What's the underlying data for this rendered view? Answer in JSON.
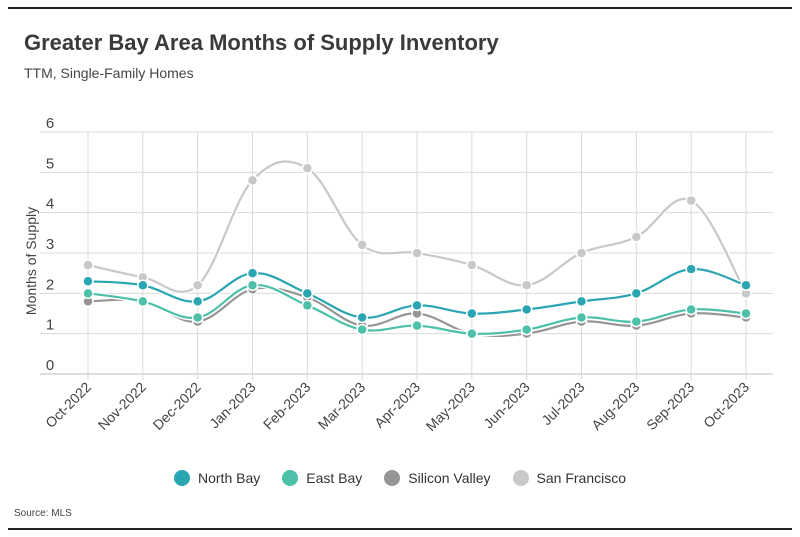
{
  "title": "Greater Bay Area Months of Supply Inventory",
  "subtitle": "TTM, Single-Family Homes",
  "source": "Source: MLS",
  "chart_data": {
    "type": "line",
    "ylabel": "Months of Supply",
    "xlabel": "",
    "ylim": [
      0,
      6
    ],
    "yticks": [
      0,
      1,
      2,
      3,
      4,
      5,
      6
    ],
    "categories": [
      "Oct-2022",
      "Nov-2022",
      "Dec-2022",
      "Jan-2023",
      "Feb-2023",
      "Mar-2023",
      "Apr-2023",
      "May-2023",
      "Jun-2023",
      "Jul-2023",
      "Aug-2023",
      "Sep-2023",
      "Oct-2023"
    ],
    "grid": true,
    "legend": "bottom",
    "series": [
      {
        "name": "North Bay",
        "color": "#2aa5b2",
        "values": [
          2.3,
          2.2,
          1.8,
          2.5,
          2.0,
          1.4,
          1.7,
          1.5,
          1.6,
          1.8,
          2.0,
          2.6,
          2.2
        ]
      },
      {
        "name": "East Bay",
        "color": "#4cc0a8",
        "values": [
          2.0,
          1.8,
          1.4,
          2.2,
          1.7,
          1.1,
          1.2,
          1.0,
          1.1,
          1.4,
          1.3,
          1.6,
          1.5
        ]
      },
      {
        "name": "Silicon Valley",
        "color": "#959595",
        "values": [
          1.8,
          1.8,
          1.3,
          2.1,
          1.9,
          1.2,
          1.5,
          1.0,
          1.0,
          1.3,
          1.2,
          1.5,
          1.4
        ]
      },
      {
        "name": "San Francisco",
        "color": "#c8c8c8",
        "values": [
          2.7,
          2.4,
          2.2,
          4.8,
          5.1,
          3.2,
          3.0,
          2.7,
          2.2,
          3.0,
          3.4,
          4.3,
          2.0
        ]
      }
    ]
  }
}
